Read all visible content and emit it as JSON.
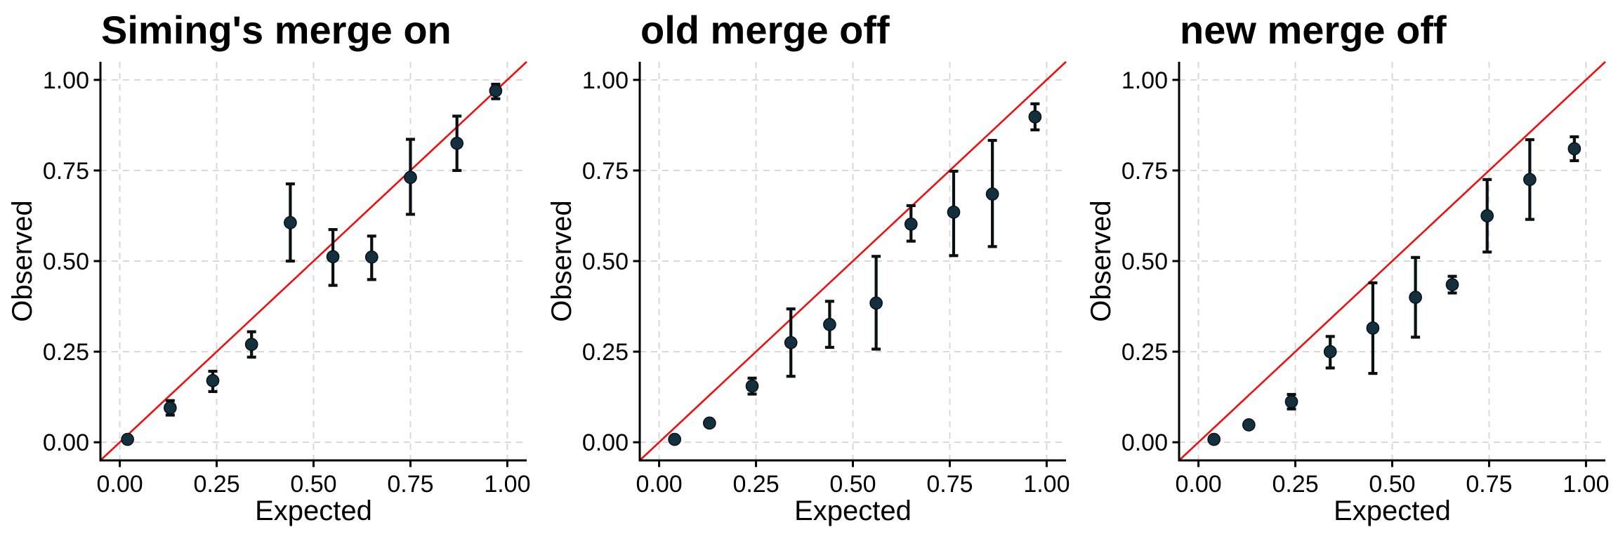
{
  "figure": {
    "type": "calibration-plot-grid",
    "background": "#ffffff",
    "panel_titles": [
      "Siming's merge on",
      "old merge off",
      "new merge off"
    ]
  },
  "style": {
    "point_color": "#13303f",
    "errorbar_color": "#0a0f12",
    "identity_line_color": "#f20d0d",
    "gridline_color": "#d8d8d8",
    "axis_color": "#000000",
    "text_color": "#000000"
  },
  "axes": {
    "x_label": "Expected",
    "y_label": "Observed",
    "tick_values": [
      0,
      0.25,
      0.5,
      0.75,
      1
    ],
    "tick_labels": [
      "0.00",
      "0.25",
      "0.50",
      "0.75",
      "1.00"
    ],
    "x_range": [
      -0.05,
      1.05
    ],
    "y_range": [
      -0.05,
      1.05
    ],
    "grid": "major-dashed",
    "identity_line": true
  },
  "chart_data": [
    {
      "type": "scatter",
      "title": "Siming's merge on",
      "xlabel": "Expected",
      "ylabel": "Observed",
      "identity_line": true,
      "xlim": [
        -0.05,
        1.05
      ],
      "ylim": [
        -0.05,
        1.05
      ],
      "points": [
        {
          "x": 0.02,
          "y": 0.008,
          "lo": 0.002,
          "hi": 0.015
        },
        {
          "x": 0.13,
          "y": 0.095,
          "lo": 0.075,
          "hi": 0.115
        },
        {
          "x": 0.24,
          "y": 0.17,
          "lo": 0.14,
          "hi": 0.196
        },
        {
          "x": 0.34,
          "y": 0.27,
          "lo": 0.235,
          "hi": 0.305
        },
        {
          "x": 0.44,
          "y": 0.606,
          "lo": 0.5,
          "hi": 0.713
        },
        {
          "x": 0.55,
          "y": 0.512,
          "lo": 0.433,
          "hi": 0.587
        },
        {
          "x": 0.65,
          "y": 0.511,
          "lo": 0.449,
          "hi": 0.569
        },
        {
          "x": 0.75,
          "y": 0.731,
          "lo": 0.629,
          "hi": 0.836
        },
        {
          "x": 0.87,
          "y": 0.825,
          "lo": 0.75,
          "hi": 0.9
        },
        {
          "x": 0.97,
          "y": 0.97,
          "lo": 0.948,
          "hi": 0.988
        }
      ]
    },
    {
      "type": "scatter",
      "title": "old merge off",
      "xlabel": "Expected",
      "ylabel": "Observed",
      "identity_line": true,
      "xlim": [
        -0.05,
        1.05
      ],
      "ylim": [
        -0.05,
        1.05
      ],
      "points": [
        {
          "x": 0.04,
          "y": 0.008,
          "lo": 0.004,
          "hi": 0.013
        },
        {
          "x": 0.13,
          "y": 0.053,
          "lo": 0.046,
          "hi": 0.061
        },
        {
          "x": 0.24,
          "y": 0.155,
          "lo": 0.133,
          "hi": 0.177
        },
        {
          "x": 0.34,
          "y": 0.275,
          "lo": 0.182,
          "hi": 0.368
        },
        {
          "x": 0.44,
          "y": 0.325,
          "lo": 0.262,
          "hi": 0.389
        },
        {
          "x": 0.56,
          "y": 0.384,
          "lo": 0.257,
          "hi": 0.513
        },
        {
          "x": 0.65,
          "y": 0.602,
          "lo": 0.555,
          "hi": 0.653
        },
        {
          "x": 0.76,
          "y": 0.635,
          "lo": 0.515,
          "hi": 0.748
        },
        {
          "x": 0.86,
          "y": 0.685,
          "lo": 0.54,
          "hi": 0.833
        },
        {
          "x": 0.97,
          "y": 0.898,
          "lo": 0.862,
          "hi": 0.934
        }
      ]
    },
    {
      "type": "scatter",
      "title": "new merge off",
      "xlabel": "Expected",
      "ylabel": "Observed",
      "identity_line": true,
      "xlim": [
        -0.05,
        1.05
      ],
      "ylim": [
        -0.05,
        1.05
      ],
      "points": [
        {
          "x": 0.04,
          "y": 0.008,
          "lo": 0.004,
          "hi": 0.013
        },
        {
          "x": 0.13,
          "y": 0.048,
          "lo": 0.042,
          "hi": 0.055
        },
        {
          "x": 0.24,
          "y": 0.112,
          "lo": 0.092,
          "hi": 0.132
        },
        {
          "x": 0.34,
          "y": 0.25,
          "lo": 0.205,
          "hi": 0.292
        },
        {
          "x": 0.45,
          "y": 0.315,
          "lo": 0.19,
          "hi": 0.44
        },
        {
          "x": 0.56,
          "y": 0.4,
          "lo": 0.29,
          "hi": 0.51
        },
        {
          "x": 0.655,
          "y": 0.435,
          "lo": 0.412,
          "hi": 0.458
        },
        {
          "x": 0.745,
          "y": 0.625,
          "lo": 0.525,
          "hi": 0.725
        },
        {
          "x": 0.855,
          "y": 0.725,
          "lo": 0.615,
          "hi": 0.835
        },
        {
          "x": 0.97,
          "y": 0.81,
          "lo": 0.777,
          "hi": 0.843
        }
      ]
    }
  ]
}
